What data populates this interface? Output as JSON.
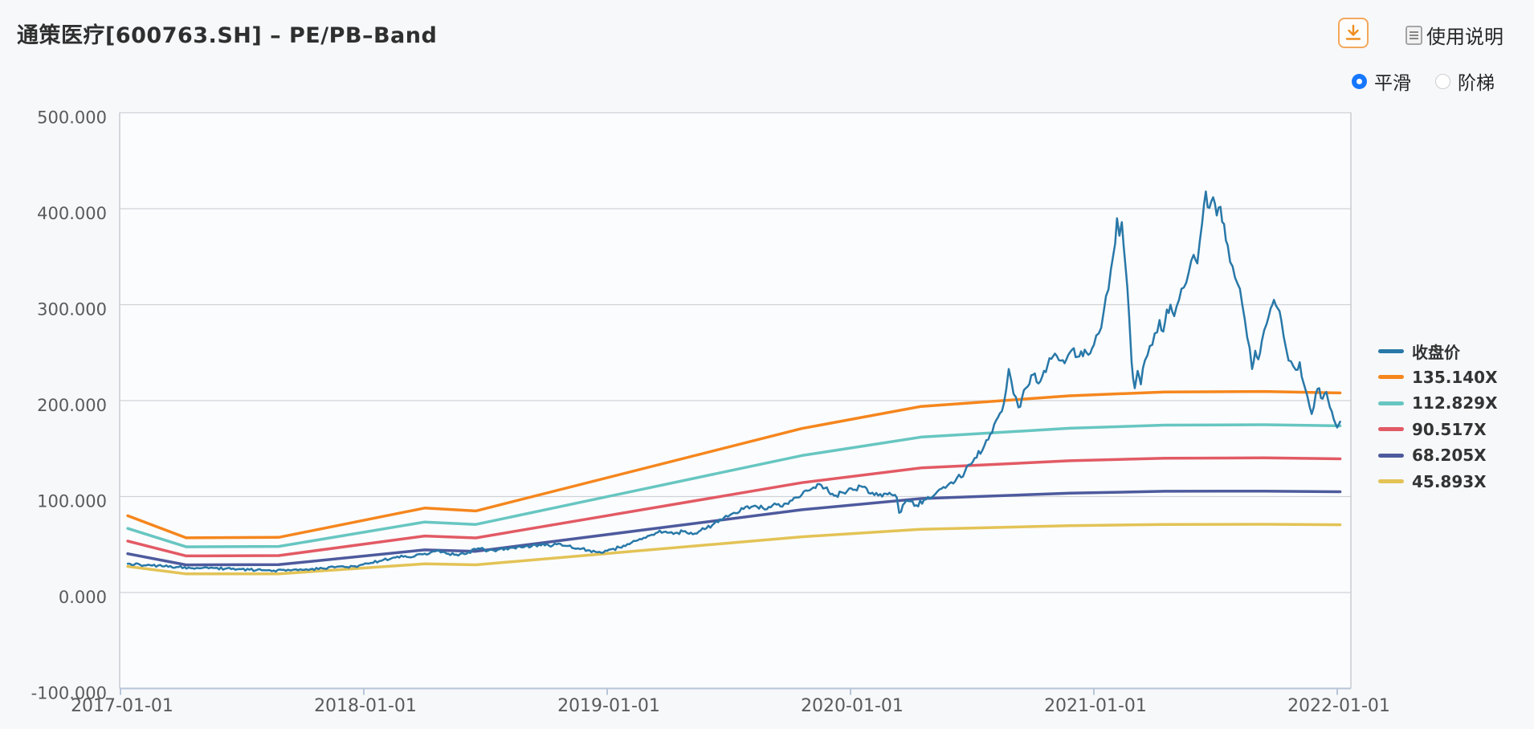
{
  "header": {
    "title": "通策医疗[600763.SH] – PE/PB–Band",
    "help_label": "使用说明"
  },
  "controls": {
    "smooth_label": "平滑",
    "step_label": "阶梯",
    "selected": "平滑"
  },
  "ui_colors": {
    "accent_orange": "#ef8d1f",
    "radio_blue": "#1677ff",
    "grid": "#cfd2d7",
    "border": "#c6c9ce",
    "axis_bottom": "#b7c5d9",
    "tick_text": "#5a5a5a"
  },
  "chart_data": {
    "type": "line",
    "title": "通策医疗[600763.SH] – PE/PB–Band",
    "legend_position": "right",
    "grid": "horizontal-only",
    "x_axis": {
      "tick_labels": [
        "2017-01-01",
        "2018-01-01",
        "2019-01-01",
        "2020-01-01",
        "2021-01-01",
        "2022-01-01"
      ],
      "tick_years": [
        2017,
        2018,
        2019,
        2020,
        2021,
        2022
      ],
      "range_years": [
        2016.997,
        2022.056
      ]
    },
    "y_axis": {
      "tick_labels": [
        "500.000",
        "400.000",
        "300.000",
        "200.000",
        "100.000",
        "0.000",
        "-100.000"
      ],
      "tick_values": [
        500,
        400,
        300,
        200,
        100,
        0,
        -100
      ],
      "min": -100,
      "max": 500
    },
    "series": [
      {
        "name": "收盘价",
        "role": "price",
        "color": "#2878a8",
        "points": [
          [
            2017.03,
            30
          ],
          [
            2017.08,
            29
          ],
          [
            2017.13,
            28
          ],
          [
            2017.18,
            27.2
          ],
          [
            2017.23,
            26.5
          ],
          [
            2017.28,
            26
          ],
          [
            2017.33,
            25.3
          ],
          [
            2017.38,
            25.6
          ],
          [
            2017.43,
            24.8
          ],
          [
            2017.48,
            24.3
          ],
          [
            2017.53,
            23.8
          ],
          [
            2017.58,
            23.3
          ],
          [
            2017.63,
            22.9
          ],
          [
            2017.68,
            22.7
          ],
          [
            2017.73,
            23.2
          ],
          [
            2017.78,
            24.2
          ],
          [
            2017.83,
            25.2
          ],
          [
            2017.88,
            26.2
          ],
          [
            2017.93,
            26.6
          ],
          [
            2017.98,
            28
          ],
          [
            2018.03,
            31
          ],
          [
            2018.08,
            34
          ],
          [
            2018.13,
            36.5
          ],
          [
            2018.17,
            38
          ],
          [
            2018.2,
            37
          ],
          [
            2018.25,
            40.5
          ],
          [
            2018.3,
            43.5
          ],
          [
            2018.34,
            40.5
          ],
          [
            2018.38,
            39.5
          ],
          [
            2018.43,
            42
          ],
          [
            2018.47,
            46
          ],
          [
            2018.51,
            43.5
          ],
          [
            2018.55,
            44.5
          ],
          [
            2018.6,
            46.5
          ],
          [
            2018.64,
            48
          ],
          [
            2018.68,
            47
          ],
          [
            2018.72,
            50
          ],
          [
            2018.76,
            49
          ],
          [
            2018.8,
            51
          ],
          [
            2018.84,
            48.5
          ],
          [
            2018.88,
            46
          ],
          [
            2018.92,
            44
          ],
          [
            2018.96,
            42
          ],
          [
            2019.0,
            43.5
          ],
          [
            2019.05,
            47
          ],
          [
            2019.1,
            52
          ],
          [
            2019.15,
            57
          ],
          [
            2019.2,
            62
          ],
          [
            2019.24,
            63.5
          ],
          [
            2019.28,
            62
          ],
          [
            2019.32,
            64
          ],
          [
            2019.36,
            61.5
          ],
          [
            2019.4,
            66
          ],
          [
            2019.44,
            72
          ],
          [
            2019.48,
            78
          ],
          [
            2019.52,
            83
          ],
          [
            2019.56,
            87
          ],
          [
            2019.6,
            90
          ],
          [
            2019.64,
            88
          ],
          [
            2019.68,
            91
          ],
          [
            2019.72,
            89.5
          ],
          [
            2019.76,
            96
          ],
          [
            2019.8,
            102
          ],
          [
            2019.84,
            108
          ],
          [
            2019.88,
            112
          ],
          [
            2019.91,
            105
          ],
          [
            2019.94,
            101
          ],
          [
            2019.97,
            104
          ],
          [
            2020.01,
            107
          ],
          [
            2020.05,
            110
          ],
          [
            2020.09,
            104
          ],
          [
            2020.13,
            100
          ],
          [
            2020.16,
            104
          ],
          [
            2020.19,
            99
          ],
          [
            2020.2,
            83
          ],
          [
            2020.23,
            96
          ],
          [
            2020.27,
            91
          ],
          [
            2020.31,
            97
          ],
          [
            2020.35,
            103
          ],
          [
            2020.39,
            109
          ],
          [
            2020.43,
            116
          ],
          [
            2020.47,
            126
          ],
          [
            2020.51,
            140
          ],
          [
            2020.55,
            153
          ],
          [
            2020.59,
            175
          ],
          [
            2020.63,
            197
          ],
          [
            2020.65,
            233
          ],
          [
            2020.67,
            207
          ],
          [
            2020.69,
            193
          ],
          [
            2020.72,
            213
          ],
          [
            2020.75,
            227
          ],
          [
            2020.78,
            220
          ],
          [
            2020.81,
            237
          ],
          [
            2020.84,
            249
          ],
          [
            2020.88,
            239
          ],
          [
            2020.91,
            253
          ],
          [
            2020.94,
            246
          ],
          [
            2020.97,
            250
          ],
          [
            2021.0,
            258
          ],
          [
            2021.02,
            270
          ],
          [
            2021.04,
            292
          ],
          [
            2021.06,
            316
          ],
          [
            2021.08,
            352
          ],
          [
            2021.095,
            390
          ],
          [
            2021.105,
            372
          ],
          [
            2021.115,
            386
          ],
          [
            2021.13,
            340
          ],
          [
            2021.145,
            288
          ],
          [
            2021.155,
            240
          ],
          [
            2021.168,
            213
          ],
          [
            2021.18,
            231
          ],
          [
            2021.193,
            217
          ],
          [
            2021.21,
            242
          ],
          [
            2021.23,
            257
          ],
          [
            2021.25,
            270
          ],
          [
            2021.27,
            284
          ],
          [
            2021.285,
            272
          ],
          [
            2021.3,
            295
          ],
          [
            2021.315,
            300
          ],
          [
            2021.33,
            288
          ],
          [
            2021.35,
            305
          ],
          [
            2021.37,
            318
          ],
          [
            2021.39,
            334
          ],
          [
            2021.41,
            352
          ],
          [
            2021.425,
            343
          ],
          [
            2021.445,
            385
          ],
          [
            2021.46,
            418
          ],
          [
            2021.475,
            401
          ],
          [
            2021.49,
            412
          ],
          [
            2021.505,
            393
          ],
          [
            2021.52,
            402
          ],
          [
            2021.535,
            384
          ],
          [
            2021.55,
            362
          ],
          [
            2021.57,
            340
          ],
          [
            2021.59,
            322
          ],
          [
            2021.61,
            300
          ],
          [
            2021.63,
            266
          ],
          [
            2021.65,
            233
          ],
          [
            2021.663,
            252
          ],
          [
            2021.676,
            243
          ],
          [
            2021.69,
            262
          ],
          [
            2021.71,
            280
          ],
          [
            2021.726,
            296
          ],
          [
            2021.74,
            305
          ],
          [
            2021.756,
            296
          ],
          [
            2021.77,
            284
          ],
          [
            2021.79,
            254
          ],
          [
            2021.81,
            241
          ],
          [
            2021.83,
            232
          ],
          [
            2021.846,
            240
          ],
          [
            2021.862,
            218
          ],
          [
            2021.878,
            204
          ],
          [
            2021.895,
            186
          ],
          [
            2021.912,
            207
          ],
          [
            2021.926,
            213
          ],
          [
            2021.94,
            202
          ],
          [
            2021.955,
            209
          ],
          [
            2021.97,
            193
          ],
          [
            2021.985,
            181
          ],
          [
            2022.0,
            172
          ],
          [
            2022.012,
            178
          ]
        ]
      },
      {
        "name": "135.140X",
        "role": "band",
        "multiple": 135.14,
        "color": "#f5861d",
        "points": [
          [
            2017.03,
            80
          ],
          [
            2017.27,
            57
          ],
          [
            2017.65,
            57.5
          ],
          [
            2018.25,
            88
          ],
          [
            2018.46,
            85
          ],
          [
            2019.8,
            171
          ],
          [
            2020.29,
            194
          ],
          [
            2020.9,
            205
          ],
          [
            2021.29,
            209
          ],
          [
            2021.7,
            209.5
          ],
          [
            2022.012,
            208
          ]
        ]
      },
      {
        "name": "112.829X",
        "role": "band",
        "multiple": 112.829,
        "color": "#67c6c1",
        "points": [
          [
            2017.03,
            66.8
          ],
          [
            2017.27,
            47.6
          ],
          [
            2017.65,
            48
          ],
          [
            2018.25,
            73.5
          ],
          [
            2018.46,
            71
          ],
          [
            2019.8,
            142.8
          ],
          [
            2020.29,
            162
          ],
          [
            2020.9,
            171.2
          ],
          [
            2021.29,
            174.5
          ],
          [
            2021.7,
            174.9
          ],
          [
            2022.012,
            173.7
          ]
        ]
      },
      {
        "name": "90.517X",
        "role": "band",
        "multiple": 90.517,
        "color": "#e25a64",
        "points": [
          [
            2017.03,
            53.6
          ],
          [
            2017.27,
            38.2
          ],
          [
            2017.65,
            38.5
          ],
          [
            2018.25,
            58.9
          ],
          [
            2018.46,
            56.9
          ],
          [
            2019.8,
            114.5
          ],
          [
            2020.29,
            129.9
          ],
          [
            2020.9,
            137.3
          ],
          [
            2021.29,
            140
          ],
          [
            2021.7,
            140.3
          ],
          [
            2022.012,
            139.3
          ]
        ]
      },
      {
        "name": "68.205X",
        "role": "band",
        "multiple": 68.205,
        "color": "#4d5a9d",
        "points": [
          [
            2017.03,
            40.4
          ],
          [
            2017.27,
            28.8
          ],
          [
            2017.65,
            29
          ],
          [
            2018.25,
            44.4
          ],
          [
            2018.46,
            42.9
          ],
          [
            2019.8,
            86.3
          ],
          [
            2020.29,
            97.9
          ],
          [
            2020.9,
            103.5
          ],
          [
            2021.29,
            105.5
          ],
          [
            2021.7,
            105.7
          ],
          [
            2022.012,
            105
          ]
        ]
      },
      {
        "name": "45.893X",
        "role": "band",
        "multiple": 45.893,
        "color": "#e3c356",
        "points": [
          [
            2017.03,
            27.2
          ],
          [
            2017.27,
            19.4
          ],
          [
            2017.65,
            19.5
          ],
          [
            2018.25,
            29.9
          ],
          [
            2018.46,
            28.9
          ],
          [
            2019.8,
            58.1
          ],
          [
            2020.29,
            65.9
          ],
          [
            2020.9,
            69.6
          ],
          [
            2021.29,
            71
          ],
          [
            2021.7,
            71.1
          ],
          [
            2022.012,
            70.6
          ]
        ]
      }
    ]
  }
}
